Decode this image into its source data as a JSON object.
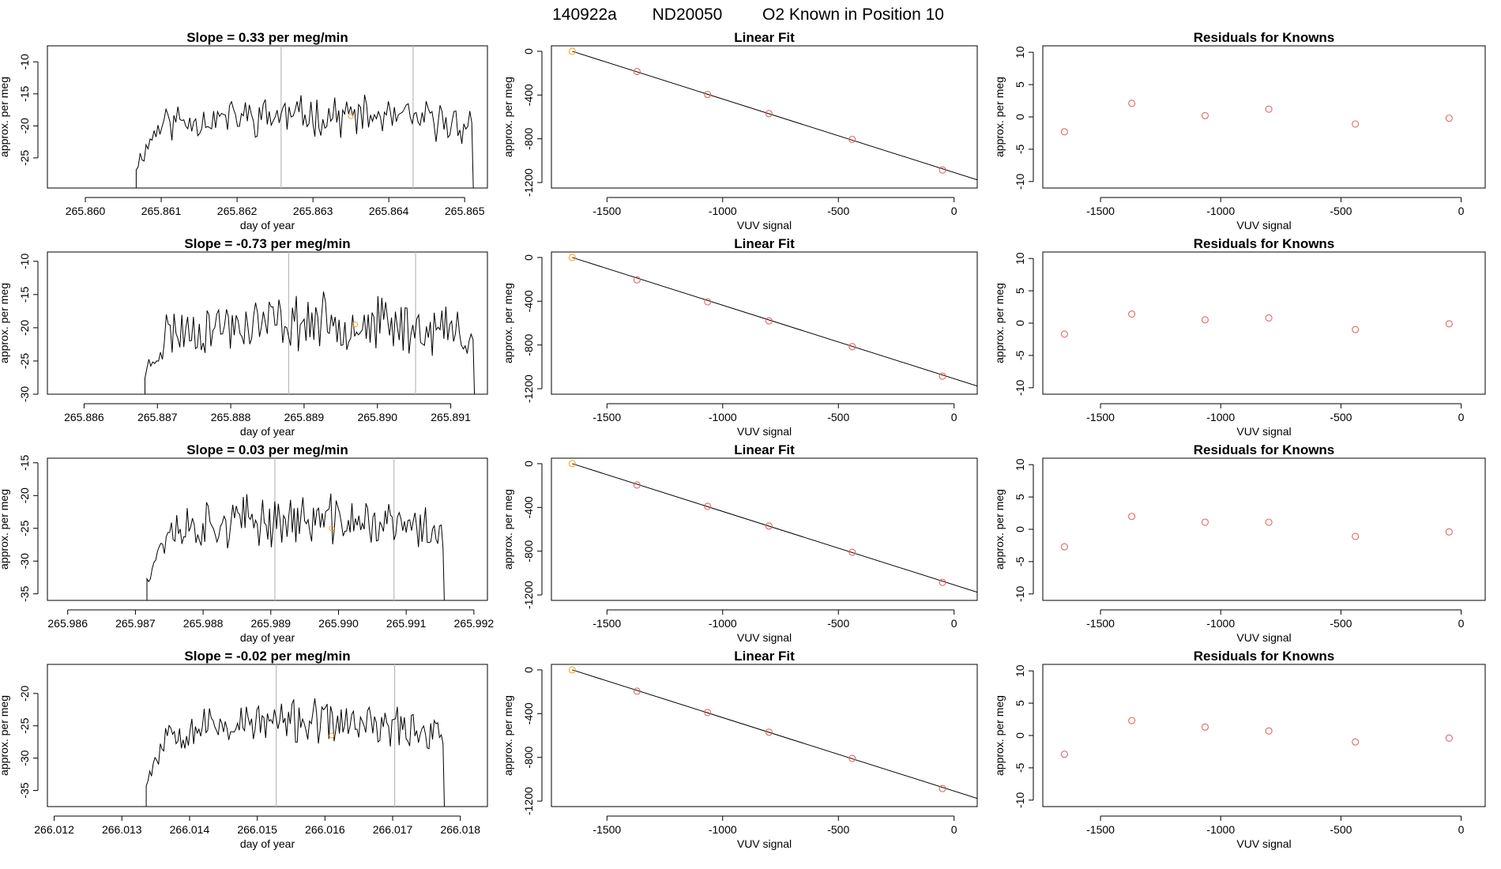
{
  "header": {
    "run": "140922a",
    "tank": "ND20050",
    "description": "O2 Known in Position  10"
  },
  "colors": {
    "trace": "#000000",
    "point": "#e06666",
    "highlight": "#f5a623",
    "vline": "#bbbbbb",
    "frame": "#000000"
  },
  "chart_data": [
    {
      "type": "line",
      "title": "Slope =  0.33  per meg/min",
      "xlabel": "day of year",
      "ylabel": "approx. per meg",
      "xlim": [
        265.8595,
        265.8653
      ],
      "ylim": [
        -29.7,
        -7.5
      ],
      "xticks": [
        265.86,
        265.861,
        265.862,
        265.863,
        265.864,
        265.865
      ],
      "xtick_labels": [
        "265.860",
        "265.861",
        "265.862",
        "265.863",
        "265.864",
        "265.865"
      ],
      "yticks": [
        -25,
        -20,
        -15,
        -10
      ],
      "vlines": [
        265.86258,
        265.86432
      ],
      "marker": {
        "x": 265.8635,
        "y": -18.5
      },
      "trace_start": 265.86067,
      "trace_end": 265.86512,
      "trace_mean": -19.8,
      "trace_amp": 2.4,
      "trace_seed": 11
    },
    {
      "type": "line",
      "title": "Slope =  -0.73  per meg/min",
      "xlabel": "day of year",
      "ylabel": "approx. per meg",
      "xlim": [
        265.8855,
        265.8915
      ],
      "ylim": [
        -30,
        -8.6
      ],
      "xticks": [
        265.886,
        265.887,
        265.888,
        265.889,
        265.89,
        265.891
      ],
      "xtick_labels": [
        "265.886",
        "265.887",
        "265.888",
        "265.889",
        "265.890",
        "265.891"
      ],
      "yticks": [
        -30,
        -25,
        -20,
        -15,
        -10
      ],
      "vlines": [
        265.88879,
        265.89052
      ],
      "marker": {
        "x": 265.8897,
        "y": -19.5
      },
      "trace_start": 265.88683,
      "trace_end": 265.89133,
      "trace_mean": -21.0,
      "trace_amp": 3.2,
      "trace_seed": 23
    },
    {
      "type": "line",
      "title": "Slope =  0.03  per meg/min",
      "xlabel": "day of year",
      "ylabel": "approx. per meg",
      "xlim": [
        265.9857,
        265.9922
      ],
      "ylim": [
        -36,
        -14.3
      ],
      "xticks": [
        265.986,
        265.987,
        265.988,
        265.989,
        265.99,
        265.991,
        265.992
      ],
      "xtick_labels": [
        "265.986",
        "265.987",
        "265.988",
        "265.989",
        "265.990",
        "265.991",
        "265.992"
      ],
      "yticks": [
        -35,
        -30,
        -25,
        -20,
        -15
      ],
      "vlines": [
        265.98906,
        265.99082
      ],
      "marker": {
        "x": 265.9899,
        "y": -25
      },
      "trace_start": 265.98717,
      "trace_end": 265.99157,
      "trace_mean": -25.5,
      "trace_amp": 3.0,
      "trace_seed": 37
    },
    {
      "type": "line",
      "title": "Slope =  -0.02  per meg/min",
      "xlabel": "day of year",
      "ylabel": "approx. per meg",
      "xlim": [
        266.0119,
        266.0184
      ],
      "ylim": [
        -37.5,
        -15.5
      ],
      "xticks": [
        266.012,
        266.013,
        266.014,
        266.015,
        266.016,
        266.017,
        266.018
      ],
      "xtick_labels": [
        "266.012",
        "266.013",
        "266.014",
        "266.015",
        "266.016",
        "266.017",
        "266.018"
      ],
      "yticks": [
        -35,
        -30,
        -25,
        -20
      ],
      "vlines": [
        266.01528,
        266.01703
      ],
      "marker": {
        "x": 266.0161,
        "y": -26.5
      },
      "trace_start": 266.01336,
      "trace_end": 266.01777,
      "trace_mean": -26.0,
      "trace_amp": 2.6,
      "trace_seed": 53
    },
    {
      "type": "scatter",
      "title": "Linear Fit",
      "xlabel": "VUV signal",
      "ylabel": "approx. per meg",
      "xlim": [
        -1740,
        100
      ],
      "ylim": [
        -1250,
        50
      ],
      "xticks": [
        -1500,
        -1000,
        -500,
        0
      ],
      "xtick_labels": [
        "-1500",
        "-1000",
        "-500",
        "0"
      ],
      "yticks": [
        -1200,
        -800,
        -400,
        0
      ],
      "ytick_labels": [
        "-1200",
        "-800",
        "-400",
        "0"
      ],
      "x": [
        -1650,
        -1370,
        -1065,
        -800,
        -440,
        -50
      ],
      "y": [
        0,
        -185,
        -395,
        -570,
        -805,
        -1085
      ],
      "fit_line": {
        "x": [
          -1650,
          100
        ],
        "y": [
          0,
          -1175
        ]
      }
    },
    {
      "type": "scatter",
      "title": "Linear Fit",
      "xlabel": "VUV signal",
      "ylabel": "approx. per meg",
      "xlim": [
        -1740,
        100
      ],
      "ylim": [
        -1250,
        50
      ],
      "xticks": [
        -1500,
        -1000,
        -500,
        0
      ],
      "xtick_labels": [
        "-1500",
        "-1000",
        "-500",
        "0"
      ],
      "yticks": [
        -1200,
        -800,
        -400,
        0
      ],
      "ytick_labels": [
        "-1200",
        "-800",
        "-400",
        "0"
      ],
      "x": [
        -1650,
        -1370,
        -1065,
        -800,
        -440,
        -50
      ],
      "y": [
        0,
        -205,
        -405,
        -580,
        -815,
        -1085
      ],
      "fit_line": {
        "x": [
          -1650,
          100
        ],
        "y": [
          0,
          -1175
        ]
      }
    },
    {
      "type": "scatter",
      "title": "Linear Fit",
      "xlabel": "VUV signal",
      "ylabel": "approx. per meg",
      "xlim": [
        -1740,
        100
      ],
      "ylim": [
        -1250,
        50
      ],
      "xticks": [
        -1500,
        -1000,
        -500,
        0
      ],
      "xtick_labels": [
        "-1500",
        "-1000",
        "-500",
        "0"
      ],
      "yticks": [
        -1200,
        -800,
        -400,
        0
      ],
      "ytick_labels": [
        "-1200",
        "-800",
        "-400",
        "0"
      ],
      "x": [
        -1650,
        -1370,
        -1065,
        -800,
        -440,
        -50
      ],
      "y": [
        0,
        -195,
        -390,
        -570,
        -810,
        -1085
      ],
      "fit_line": {
        "x": [
          -1650,
          100
        ],
        "y": [
          0,
          -1175
        ]
      }
    },
    {
      "type": "scatter",
      "title": "Linear Fit",
      "xlabel": "VUV signal",
      "ylabel": "approx. per meg",
      "xlim": [
        -1740,
        100
      ],
      "ylim": [
        -1250,
        50
      ],
      "xticks": [
        -1500,
        -1000,
        -500,
        0
      ],
      "xtick_labels": [
        "-1500",
        "-1000",
        "-500",
        "0"
      ],
      "yticks": [
        -1200,
        -800,
        -400,
        0
      ],
      "ytick_labels": [
        "-1200",
        "-800",
        "-400",
        "0"
      ],
      "x": [
        -1650,
        -1370,
        -1065,
        -800,
        -440,
        -50
      ],
      "y": [
        0,
        -195,
        -390,
        -570,
        -810,
        -1085
      ],
      "fit_line": {
        "x": [
          -1650,
          100
        ],
        "y": [
          0,
          -1175
        ]
      }
    },
    {
      "type": "scatter",
      "title": "Residuals for Knowns",
      "xlabel": "VUV signal",
      "ylabel": "approx. per meg",
      "xlim": [
        -1740,
        100
      ],
      "ylim": [
        -11,
        11
      ],
      "xticks": [
        -1500,
        -1000,
        -500,
        0
      ],
      "xtick_labels": [
        "-1500",
        "-1000",
        "-500",
        "0"
      ],
      "yticks": [
        -10,
        -5,
        0,
        5,
        10
      ],
      "ytick_labels": [
        "-10",
        "-5",
        "0",
        "5",
        "10"
      ],
      "x": [
        -1650,
        -1370,
        -1065,
        -800,
        -440,
        -50
      ],
      "y": [
        -2.3,
        2.1,
        0.2,
        1.2,
        -1.1,
        -0.2
      ]
    },
    {
      "type": "scatter",
      "title": "Residuals for Knowns",
      "xlabel": "VUV signal",
      "ylabel": "approx. per meg",
      "xlim": [
        -1740,
        100
      ],
      "ylim": [
        -11,
        11
      ],
      "xticks": [
        -1500,
        -1000,
        -500,
        0
      ],
      "xtick_labels": [
        "-1500",
        "-1000",
        "-500",
        "0"
      ],
      "yticks": [
        -10,
        -5,
        0,
        5,
        10
      ],
      "ytick_labels": [
        "-10",
        "-5",
        "0",
        "5",
        "10"
      ],
      "x": [
        -1650,
        -1370,
        -1065,
        -800,
        -440,
        -50
      ],
      "y": [
        -1.7,
        1.4,
        0.5,
        0.8,
        -1.0,
        -0.1
      ]
    },
    {
      "type": "scatter",
      "title": "Residuals for Knowns",
      "xlabel": "VUV signal",
      "ylabel": "approx. per meg",
      "xlim": [
        -1740,
        100
      ],
      "ylim": [
        -11,
        11
      ],
      "xticks": [
        -1500,
        -1000,
        -500,
        0
      ],
      "xtick_labels": [
        "-1500",
        "-1000",
        "-500",
        "0"
      ],
      "yticks": [
        -10,
        -5,
        0,
        5,
        10
      ],
      "ytick_labels": [
        "-10",
        "-5",
        "0",
        "5",
        "10"
      ],
      "x": [
        -1650,
        -1370,
        -1065,
        -800,
        -440,
        -50
      ],
      "y": [
        -2.7,
        2.0,
        1.1,
        1.1,
        -1.1,
        -0.4
      ]
    },
    {
      "type": "scatter",
      "title": "Residuals for Knowns",
      "xlabel": "VUV signal",
      "ylabel": "approx. per meg",
      "xlim": [
        -1740,
        100
      ],
      "ylim": [
        -11,
        11
      ],
      "xticks": [
        -1500,
        -1000,
        -500,
        0
      ],
      "xtick_labels": [
        "-1500",
        "-1000",
        "-500",
        "0"
      ],
      "yticks": [
        -10,
        -5,
        0,
        5,
        10
      ],
      "ytick_labels": [
        "-10",
        "-5",
        "0",
        "5",
        "10"
      ],
      "x": [
        -1650,
        -1370,
        -1065,
        -800,
        -440,
        -50
      ],
      "y": [
        -2.9,
        2.3,
        1.3,
        0.7,
        -1.0,
        -0.4
      ]
    }
  ]
}
